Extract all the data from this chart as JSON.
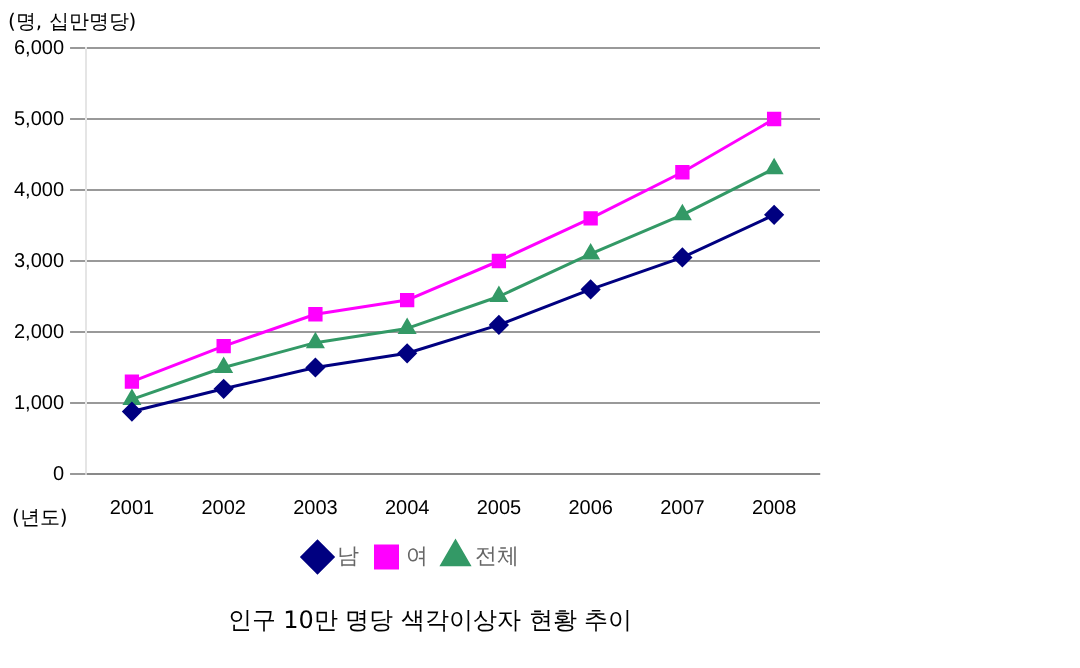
{
  "chart_data": {
    "type": "line",
    "title": "인구 10만 명당 색각이상자 현황 추이",
    "xlabel": "(년도)",
    "ylabel": "(명, 십만명당)",
    "categories": [
      "2001",
      "2002",
      "2003",
      "2004",
      "2005",
      "2006",
      "2007",
      "2008"
    ],
    "series": [
      {
        "name": "남",
        "color": "#000080",
        "marker": "diamond",
        "values": [
          880,
          1200,
          1500,
          1700,
          2100,
          2600,
          3050,
          3650
        ]
      },
      {
        "name": "여",
        "color": "#ff00ff",
        "marker": "square",
        "values": [
          1300,
          1800,
          2250,
          2450,
          3000,
          3600,
          4250,
          5000
        ]
      },
      {
        "name": "전체",
        "color": "#339966",
        "marker": "triangle",
        "values": [
          1050,
          1500,
          1850,
          2050,
          2500,
          3100,
          3650,
          4300
        ]
      }
    ],
    "ylim": [
      0,
      6000
    ],
    "yticks": [
      0,
      {
        "value": 1000,
        "label": "1,000"
      },
      {
        "value": 2000,
        "label": "2,000"
      },
      {
        "value": 3000,
        "label": "3,000"
      },
      {
        "value": 4000,
        "label": "4,000"
      },
      {
        "value": 5000,
        "label": "5,000"
      },
      {
        "value": 6000,
        "label": "6,000"
      }
    ],
    "grid": "y",
    "legend": "bottom"
  }
}
